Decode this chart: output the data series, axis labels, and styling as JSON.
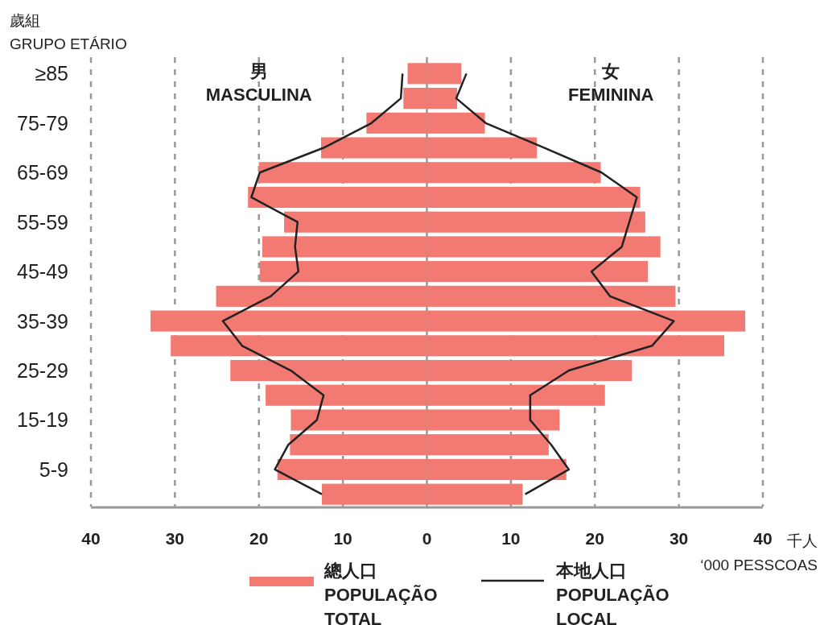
{
  "chart_data": {
    "type": "bar",
    "orientation": "horizontal",
    "ylabel": "歲組\nGRUPO ETÁRIO",
    "xlabel": "千人\n‘000 PESSCOAS",
    "categories": [
      "≥85",
      null,
      "75-79",
      null,
      "65-69",
      null,
      "55-59",
      null,
      "45-49",
      null,
      "35-39",
      null,
      "25-29",
      null,
      "15-19",
      null,
      "5-9",
      null
    ],
    "series": [
      {
        "name": "總人口\nPOPULAÇÃO\nTOTAL",
        "color": "#f27a72",
        "values": [
          -2.3,
          -2.8,
          -7.2,
          -12.6,
          -20.0,
          -21.3,
          -17.0,
          -19.6,
          -19.9,
          -25.1,
          -32.9,
          -30.5,
          -23.4,
          -19.2,
          -16.2,
          -16.3,
          -17.8,
          -12.5
        ]
      },
      {
        "color": "#f27a72",
        "values": [
          4.1,
          3.6,
          6.9,
          13.1,
          20.7,
          25.4,
          26.0,
          27.8,
          26.3,
          29.6,
          37.9,
          35.4,
          24.4,
          21.2,
          15.8,
          14.5,
          16.6,
          11.4
        ]
      },
      {
        "name": "本地人口\nPOPULAÇÃO\nLOCAL",
        "type": "line",
        "color": "#222222",
        "values": [
          -2.9,
          -3.1,
          -6.6,
          -12.3,
          -19.9,
          -20.9,
          -15.4,
          -15.7,
          -15.3,
          -18.6,
          -24.3,
          -22.0,
          -16.2,
          -12.3,
          -13.1,
          -16.5,
          -18.1,
          -12.5
        ]
      },
      {
        "type": "line",
        "color": "#222222",
        "values": [
          4.7,
          3.5,
          7.0,
          14.0,
          20.8,
          25.0,
          24.1,
          23.2,
          19.6,
          21.8,
          29.4,
          26.8,
          16.9,
          12.3,
          12.3,
          14.8,
          16.9,
          11.7
        ]
      }
    ],
    "xlim": [
      -40,
      40
    ],
    "xticks": [
      {
        "value": -40,
        "label": "40"
      },
      {
        "value": -30,
        "label": "30"
      },
      {
        "value": -20,
        "label": "20"
      },
      {
        "value": -10,
        "label": "10"
      },
      0,
      10,
      20,
      30,
      40
    ],
    "stacked": true,
    "grid": "x",
    "legend": "bottom",
    "line_style": "solid",
    "marker": "none",
    "annotations": [
      "男\nMASCULINA",
      "女\nFEMININA"
    ]
  }
}
